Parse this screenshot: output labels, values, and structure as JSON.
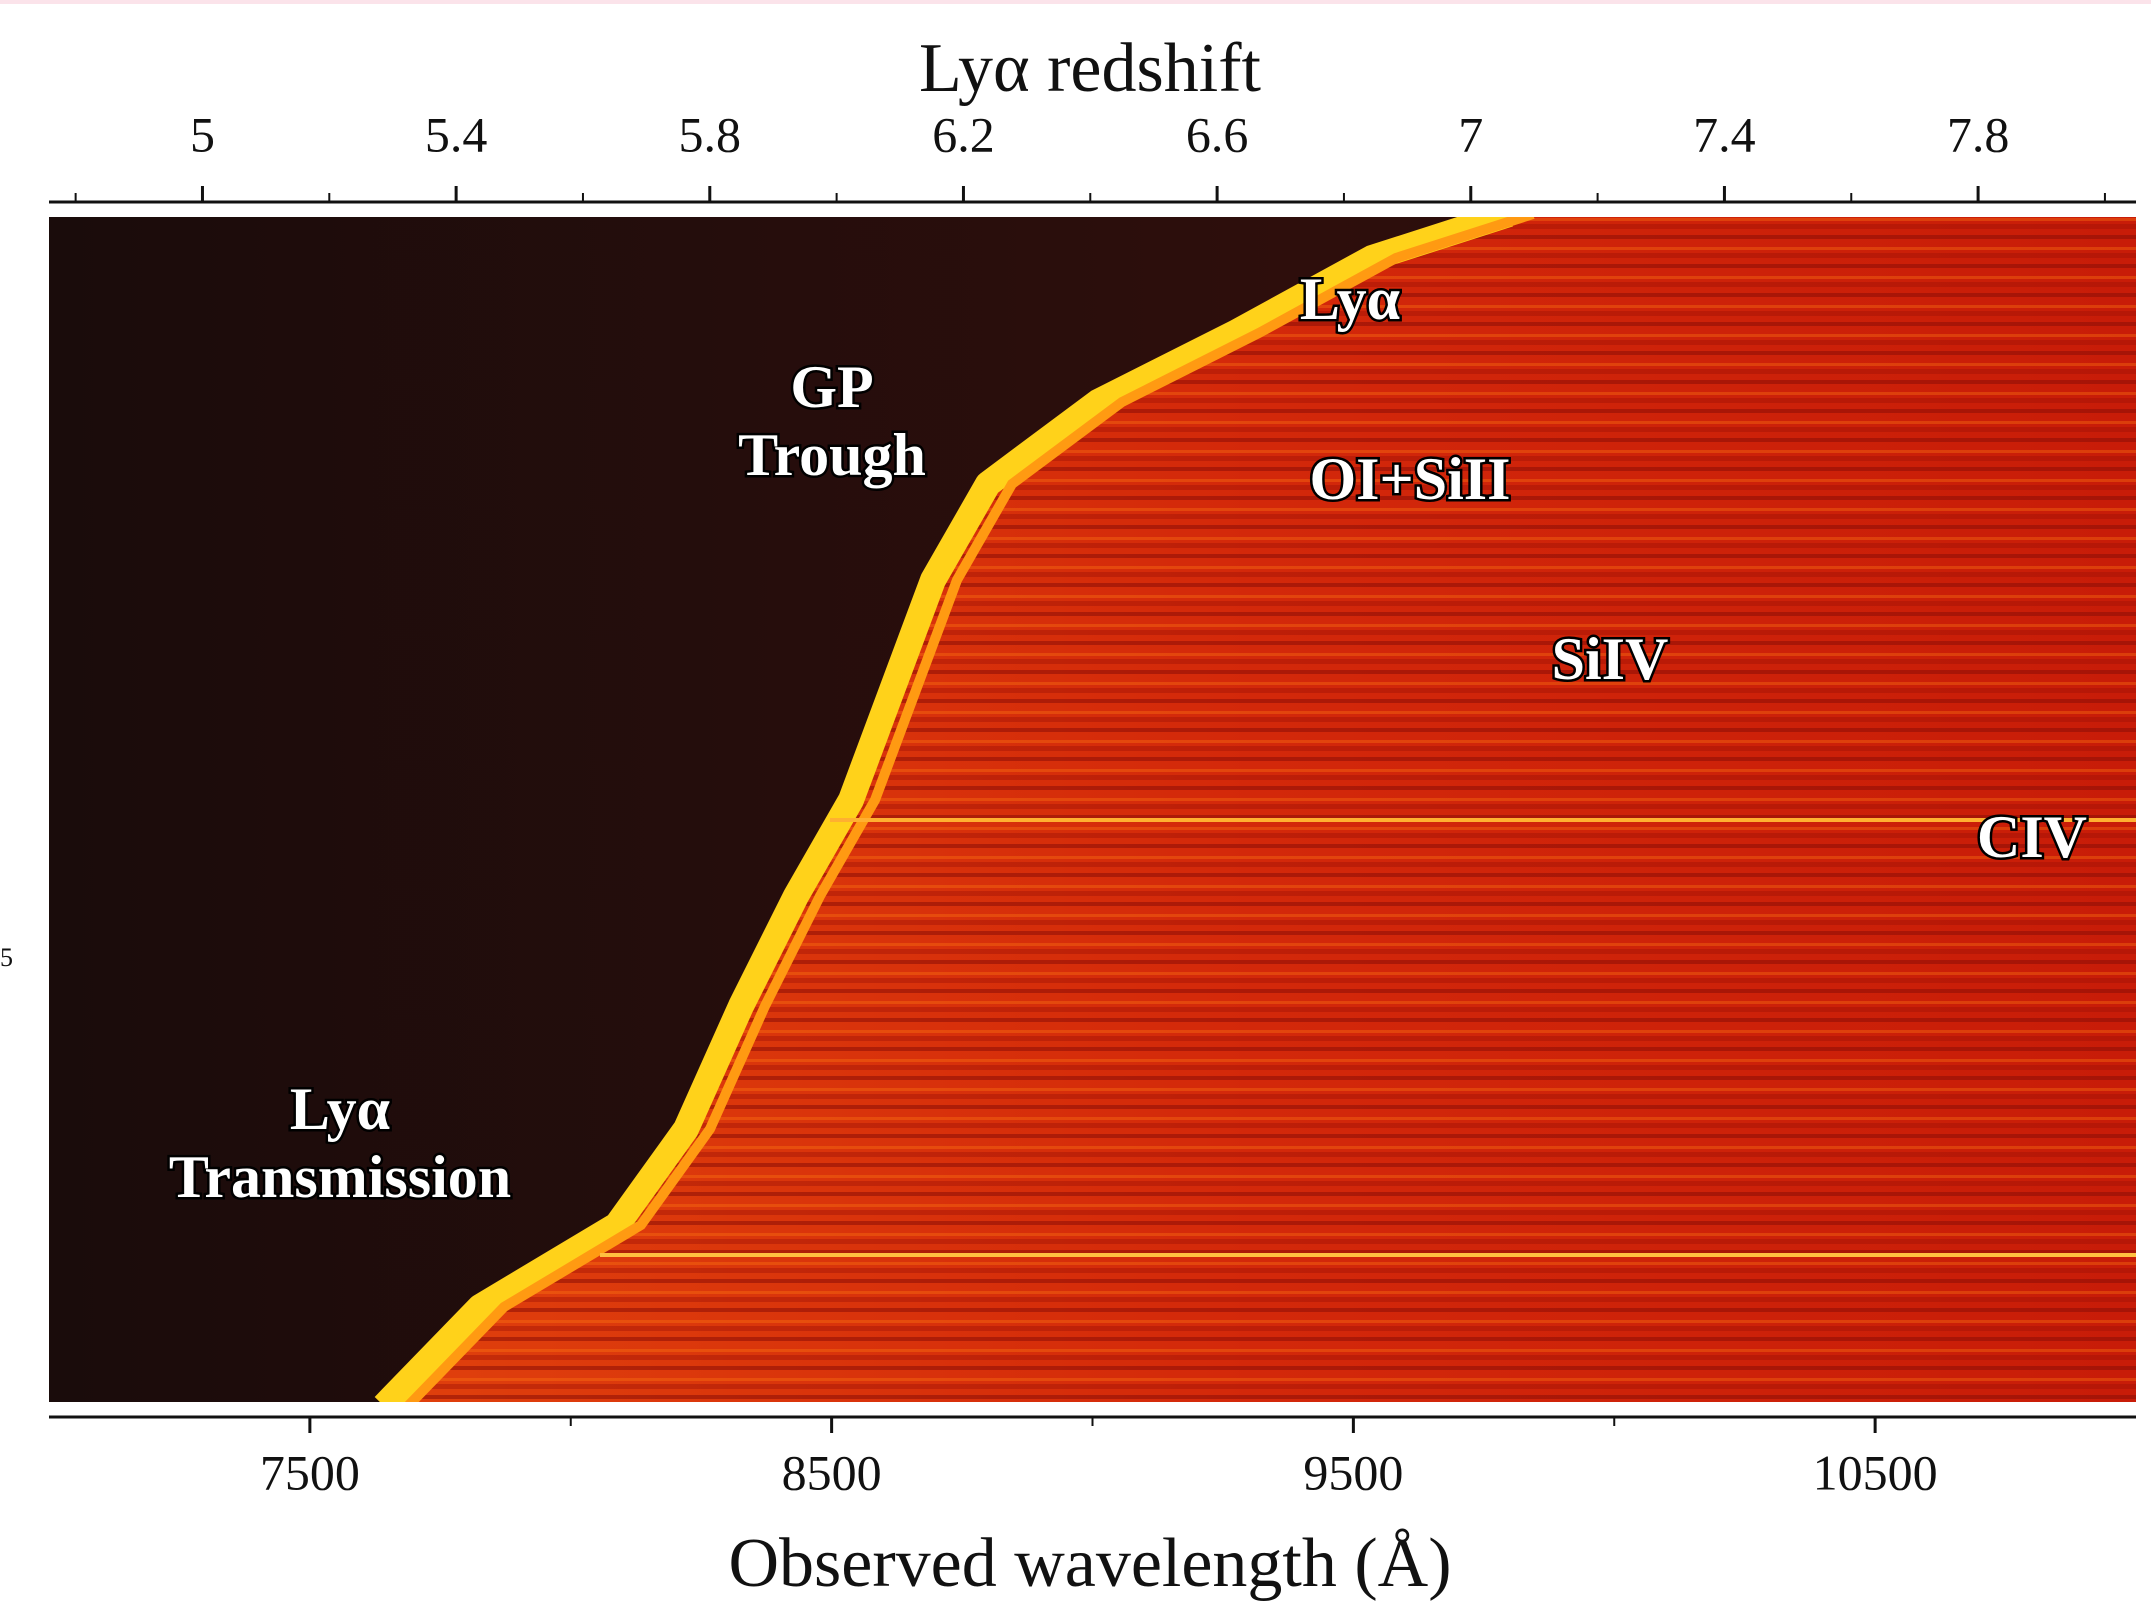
{
  "chart_data": {
    "type": "heatmap",
    "xlabel": "Observed wavelength (Å)",
    "x2label": "Lyα redshift",
    "xlim": [
      7000,
      11000
    ],
    "xticks": [
      7500,
      8500,
      9500,
      10500
    ],
    "x2lim": [
      4.758,
      8.049
    ],
    "x2ticks": [
      5,
      5.4,
      5.8,
      6.2,
      6.6,
      7,
      7.4,
      7.8
    ],
    "annotations": [
      [
        "Lyα"
      ],
      [
        "GP",
        "Trough"
      ],
      [
        "OI+SiII"
      ],
      [
        "SiIV"
      ],
      [
        "CIV"
      ],
      [
        "Lyα",
        "Transmission"
      ]
    ],
    "stray_label": "5"
  }
}
